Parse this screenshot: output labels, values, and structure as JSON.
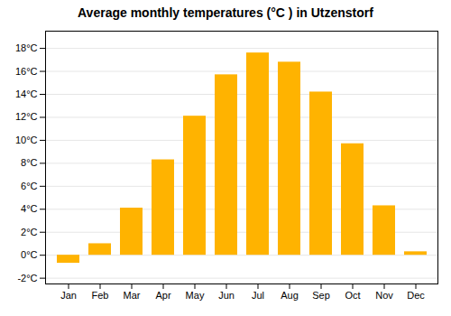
{
  "chart_data": {
    "type": "bar",
    "title": "Average monthly temperatures (°C ) in Utzenstorf",
    "categories": [
      "Jan",
      "Feb",
      "Mar",
      "Apr",
      "May",
      "Jun",
      "Jul",
      "Aug",
      "Sep",
      "Oct",
      "Nov",
      "Dec"
    ],
    "values": [
      -0.7,
      1.0,
      4.1,
      8.3,
      12.1,
      15.7,
      17.6,
      16.8,
      14.2,
      9.7,
      4.3,
      0.3
    ],
    "color": "#FFB300",
    "ylim": [
      -2.5,
      19.5
    ],
    "yticks": [
      {
        "value": -2,
        "label": "-2°C"
      },
      {
        "value": 0,
        "label": "0°C"
      },
      {
        "value": 2,
        "label": "2°C"
      },
      {
        "value": 4,
        "label": "4°C"
      },
      {
        "value": 6,
        "label": "6°C"
      },
      {
        "value": 8,
        "label": "8°C"
      },
      {
        "value": 10,
        "label": "10°C"
      },
      {
        "value": 12,
        "label": "12°C"
      },
      {
        "value": 14,
        "label": "14°C"
      },
      {
        "value": 16,
        "label": "16°C"
      },
      {
        "value": 18,
        "label": "18°C"
      }
    ],
    "grid": true
  }
}
